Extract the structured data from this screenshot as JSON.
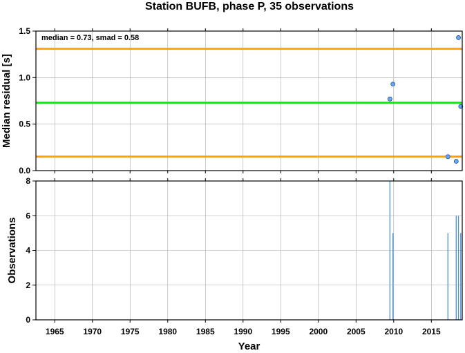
{
  "chart_data": [
    {
      "type": "scatter",
      "title": "Station BUFB, phase P, 35 observations",
      "annotation": "median = 0.73, smad = 0.58",
      "xlabel": "",
      "ylabel": "Median residual [s]",
      "xlim": [
        1962.5,
        2019.1
      ],
      "ylim": [
        0.0,
        1.5
      ],
      "xticks": [
        1965,
        1970,
        1975,
        1980,
        1985,
        1990,
        1995,
        2000,
        2005,
        2010,
        2015
      ],
      "yticks": [
        0.0,
        0.5,
        1.0,
        1.5
      ],
      "ytick_labels": [
        "0.0",
        "0.5",
        "1.0",
        "1.5"
      ],
      "grid": true,
      "hlines": [
        {
          "name": "median",
          "y": 0.73,
          "color": "#00ee00"
        },
        {
          "name": "median + smad",
          "y": 1.31,
          "color": "#ffa500"
        },
        {
          "name": "median - smad",
          "y": 0.15,
          "color": "#ffa500"
        }
      ],
      "points": [
        {
          "x": 2009.5,
          "y": 0.77
        },
        {
          "x": 2009.9,
          "y": 0.93
        },
        {
          "x": 2017.2,
          "y": 0.15
        },
        {
          "x": 2018.3,
          "y": 0.1
        },
        {
          "x": 2018.6,
          "y": 1.43
        },
        {
          "x": 2018.9,
          "y": 0.69
        }
      ],
      "marker_color": "#6aa9ec"
    },
    {
      "type": "bar",
      "xlabel": "Year",
      "ylabel": "Observations",
      "xlim": [
        1962.5,
        2019.1
      ],
      "ylim": [
        0,
        8
      ],
      "xticks": [
        1965,
        1970,
        1975,
        1980,
        1985,
        1990,
        1995,
        2000,
        2005,
        2010,
        2015
      ],
      "yticks": [
        0,
        2,
        4,
        6,
        8
      ],
      "grid": true,
      "bars": [
        {
          "x": 2009.5,
          "value": 8
        },
        {
          "x": 2009.9,
          "value": 5
        },
        {
          "x": 2017.2,
          "value": 5
        },
        {
          "x": 2018.3,
          "value": 6
        },
        {
          "x": 2018.6,
          "value": 6
        },
        {
          "x": 2018.9,
          "value": 5
        }
      ],
      "bar_color": "#4a90d9"
    }
  ]
}
